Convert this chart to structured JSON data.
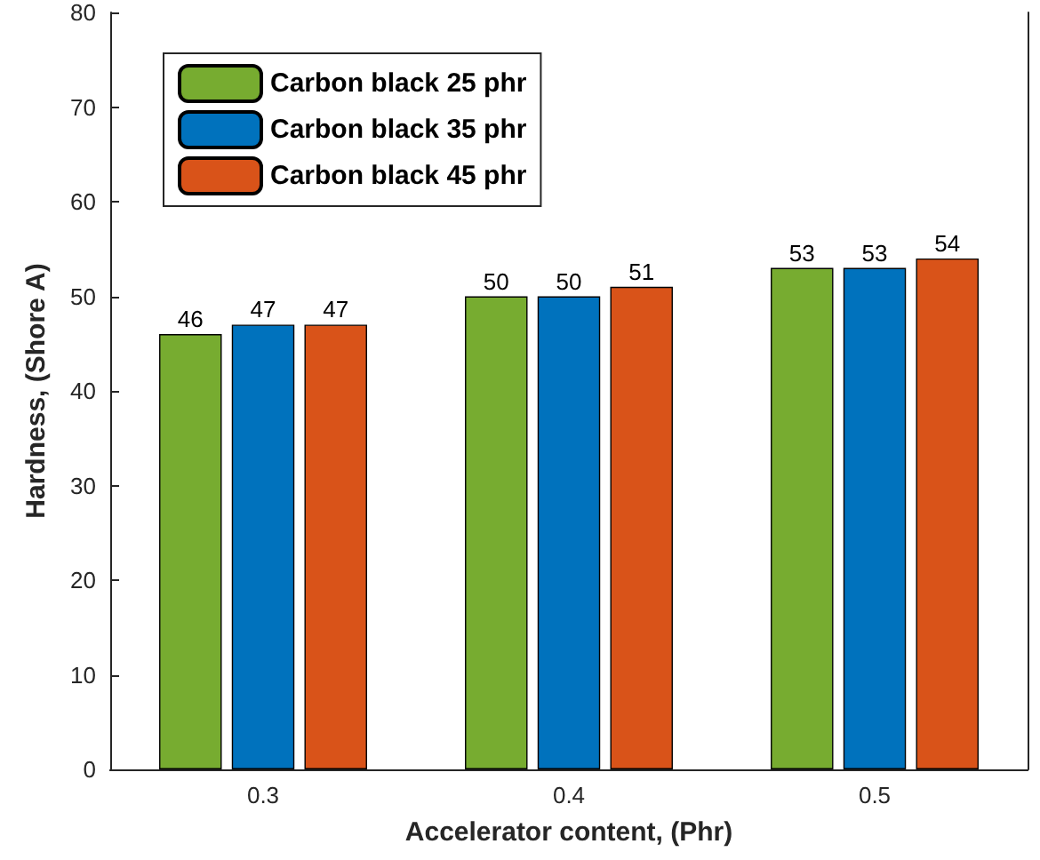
{
  "chart_data": {
    "type": "bar",
    "xlabel": "Accelerator content, (Phr)",
    "ylabel": "Hardness, (Shore A)",
    "categories": [
      "0.3",
      "0.4",
      "0.5"
    ],
    "series": [
      {
        "name": "Carbon black 25 phr",
        "color": "#77ac30",
        "values": [
          46,
          50,
          53
        ]
      },
      {
        "name": "Carbon black 35 phr",
        "color": "#0072bd",
        "values": [
          47,
          50,
          53
        ]
      },
      {
        "name": "Carbon black 45 phr",
        "color": "#d95319",
        "values": [
          47,
          51,
          54
        ]
      }
    ],
    "ylim": [
      0,
      80
    ],
    "yticks": [
      0,
      10,
      20,
      30,
      40,
      50,
      60,
      70,
      80
    ],
    "data_labels": true,
    "legend": "top left",
    "grid": false
  }
}
